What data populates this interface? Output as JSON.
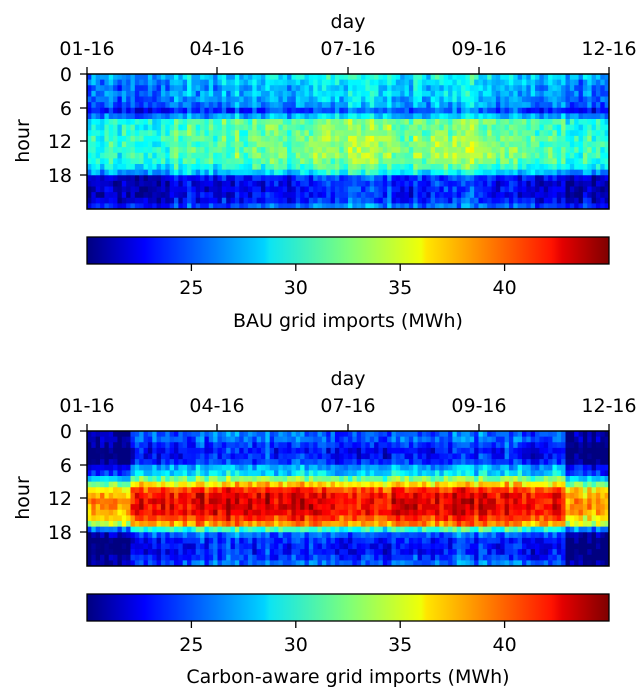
{
  "chart_data": [
    {
      "type": "heatmap",
      "xlabel": "day",
      "ylabel": "hour",
      "x_tick_labels": [
        "01-16",
        "04-16",
        "07-16",
        "09-16",
        "12-16"
      ],
      "y_tick_labels": [
        "0",
        "6",
        "12",
        "18"
      ],
      "y_ticks": [
        0,
        6,
        12,
        18
      ],
      "xlim_days": [
        0,
        365
      ],
      "x_tick_days": [
        0,
        91,
        182,
        274,
        365
      ],
      "ylim": [
        0,
        24
      ],
      "colormap": "jet",
      "colorbar": {
        "label": "BAU grid imports (MWh)",
        "range": [
          20,
          45
        ],
        "ticks": [
          25,
          30,
          35,
          40
        ],
        "tick_labels": [
          "25",
          "30",
          "35",
          "40"
        ]
      },
      "hourly_pattern_MWh": [
        28.0,
        27.5,
        27.0,
        27.0,
        26.5,
        26.0,
        24.0,
        27.0,
        31.0,
        31.0,
        31.0,
        31.5,
        31.5,
        31.5,
        31.5,
        31.0,
        30.0,
        28.0,
        23.0,
        22.5,
        22.5,
        22.5,
        23.0,
        24.5
      ],
      "monthly_offset_MWh": [
        -1.5,
        -1.0,
        0.0,
        0.5,
        0.5,
        1.5,
        2.0,
        1.0,
        2.0,
        0.5,
        0.0,
        -1.0
      ]
    },
    {
      "type": "heatmap",
      "xlabel": "day",
      "ylabel": "hour",
      "x_tick_labels": [
        "01-16",
        "04-16",
        "07-16",
        "09-16",
        "12-16"
      ],
      "y_tick_labels": [
        "0",
        "6",
        "12",
        "18"
      ],
      "y_ticks": [
        0,
        6,
        12,
        18
      ],
      "xlim_days": [
        0,
        365
      ],
      "x_tick_days": [
        0,
        91,
        182,
        274,
        365
      ],
      "ylim": [
        0,
        24
      ],
      "colormap": "jet",
      "colorbar": {
        "label": "Carbon-aware grid imports (MWh)",
        "range": [
          20,
          45
        ],
        "ticks": [
          25,
          30,
          35,
          40
        ],
        "tick_labels": [
          "25",
          "30",
          "35",
          "40"
        ]
      },
      "hourly_pattern_MWh": [
        25.0,
        25.0,
        24.0,
        23.0,
        23.0,
        24.0,
        27.0,
        28.0,
        32.0,
        36.0,
        40.0,
        41.5,
        42.0,
        42.0,
        41.5,
        40.0,
        38.0,
        30.0,
        25.0,
        23.5,
        23.0,
        23.0,
        24.0,
        25.0
      ],
      "monthly_offset_MWh": [
        -4.0,
        0.0,
        0.5,
        1.0,
        1.0,
        0.5,
        0.0,
        0.5,
        1.0,
        1.0,
        0.0,
        -4.0
      ]
    }
  ]
}
